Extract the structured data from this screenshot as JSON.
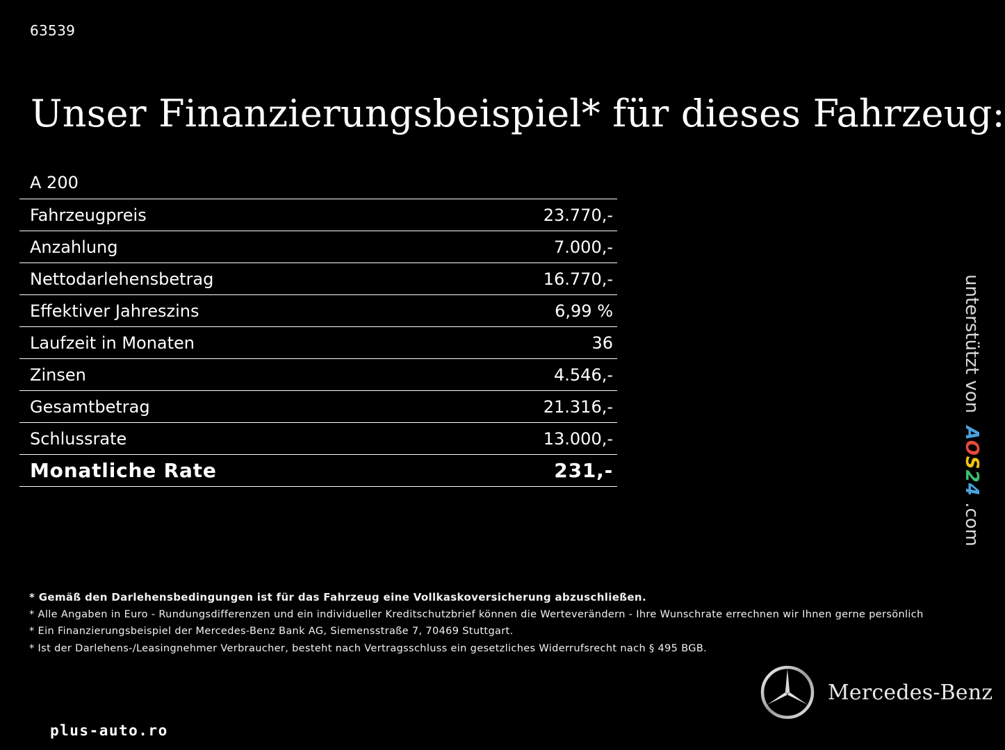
{
  "header": {
    "reference_id": "63539",
    "title": "Unser Finanzierungsbeispiel* für dieses Fahrzeug:"
  },
  "finance": {
    "model": "A 200",
    "rows": [
      {
        "label": "Fahrzeugpreis",
        "value": "23.770,-"
      },
      {
        "label": "Anzahlung",
        "value": "7.000,-"
      },
      {
        "label": "Nettodarlehensbetrag",
        "value": "16.770,-"
      },
      {
        "label": "Effektiver Jahreszins",
        "value": "6,99 %"
      },
      {
        "label": "Laufzeit in Monaten",
        "value": "36"
      },
      {
        "label": "Zinsen",
        "value": "4.546,-"
      },
      {
        "label": "Gesamtbetrag",
        "value": "21.316,-"
      },
      {
        "label": "Schlussrate",
        "value": "13.000,-"
      }
    ],
    "total": {
      "label": "Monatliche Rate",
      "value": "231,-"
    }
  },
  "sponsor": {
    "prefix": "unterstützt von",
    "logo_chars": [
      "A",
      "O",
      "S",
      "2",
      "4"
    ],
    "suffix": ".com"
  },
  "disclaimers": [
    "* Gemäß den Darlehensbedingungen ist für das Fahrzeug eine Vollkaskoversicherung abzuschließen.",
    "* Alle Angaben in Euro - Rundungsdifferenzen und ein individueller Kreditschutzbrief können die Werteverändern - Ihre Wunschrate errechnen wir Ihnen gerne persönlich",
    "* Ein Finanzierungsbeispiel der Mercedes-Benz Bank AG, Siemensstraße 7, 70469 Stuttgart.",
    "* Ist der Darlehens-/Leasingnehmer Verbraucher, besteht nach Vertragsschluss ein gesetzliches Widerrufsrecht nach § 495 BGB."
  ],
  "brand": {
    "name": "Mercedes-Benz",
    "icon": "mercedes-star-icon"
  },
  "watermark": "plus-auto.ro",
  "colors": {
    "background": "#000000",
    "text": "#ffffff",
    "aos_blue": "#4aa3df",
    "aos_red": "#e84b3c",
    "aos_yellow": "#f1c40f",
    "aos_green": "#3fbf6f"
  }
}
